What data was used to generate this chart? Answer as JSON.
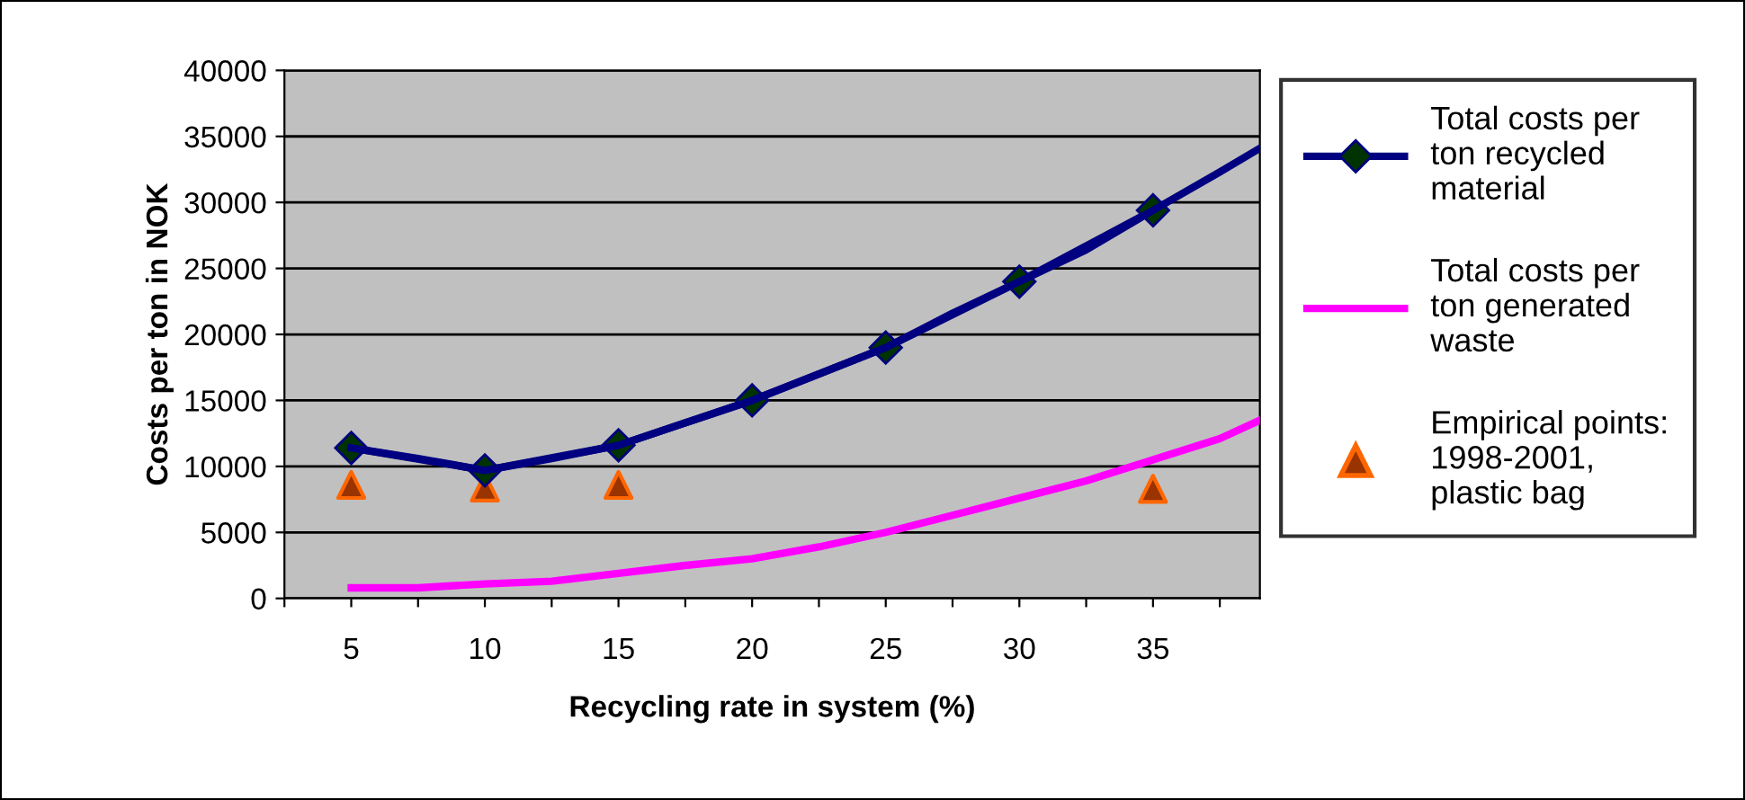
{
  "chart_data": {
    "type": "line",
    "xlabel": "Recycling rate in system (%)",
    "ylabel": "Costs per ton in NOK",
    "xlim": [
      2.5,
      39
    ],
    "ylim": [
      0,
      40000
    ],
    "xticks": [
      {
        "value": 2.5,
        "label": null
      },
      5,
      {
        "value": 7.5,
        "label": null
      },
      10,
      {
        "value": 12.5,
        "label": null
      },
      15,
      {
        "value": 17.5,
        "label": null
      },
      20,
      {
        "value": 22.5,
        "label": null
      },
      25,
      {
        "value": 27.5,
        "label": null
      },
      30,
      {
        "value": 32.5,
        "label": null
      },
      35,
      {
        "value": 37.5,
        "label": null
      }
    ],
    "yticks": [
      0,
      5000,
      10000,
      15000,
      20000,
      25000,
      30000,
      35000,
      40000
    ],
    "grid": "y",
    "legend": "right",
    "series": [
      {
        "name": "Total costs per ton recycled material",
        "color": "#000080",
        "marker": "diamond",
        "x": [
          5,
          10,
          15,
          20,
          25,
          30,
          35
        ],
        "values": [
          11400,
          9700,
          11600,
          15000,
          19000,
          24000,
          29400
        ]
      },
      {
        "color": "#000080",
        "marker": "none",
        "x": [
          5,
          7.5,
          10,
          12.5,
          15,
          17.5,
          20,
          22.5,
          25,
          27.5,
          30,
          32.5,
          35,
          37.5,
          39
        ],
        "values": [
          11400,
          10600,
          9700,
          10600,
          11600,
          13300,
          15000,
          17000,
          19000,
          21600,
          24000,
          26400,
          29400,
          32300,
          34100
        ]
      },
      {
        "name": "Total costs per ton generated waste",
        "color": "#ff00ff",
        "marker": "none",
        "x": [
          5,
          7.5,
          10,
          12.5,
          15,
          17.5,
          20,
          22.5,
          25,
          27.5,
          30,
          32.5,
          35,
          37.5,
          39
        ],
        "values": [
          800,
          800,
          1100,
          1300,
          1900,
          2500,
          3000,
          3900,
          5000,
          6300,
          7600,
          8900,
          10500,
          12100,
          13500
        ]
      },
      {
        "name": "Empirical points: 1998-2001, plastic bag",
        "type": "scatter",
        "color": "#993300",
        "marker": "triangle",
        "x": [
          5,
          10,
          15,
          35
        ],
        "values": [
          8600,
          8400,
          8600,
          8300
        ]
      }
    ]
  }
}
